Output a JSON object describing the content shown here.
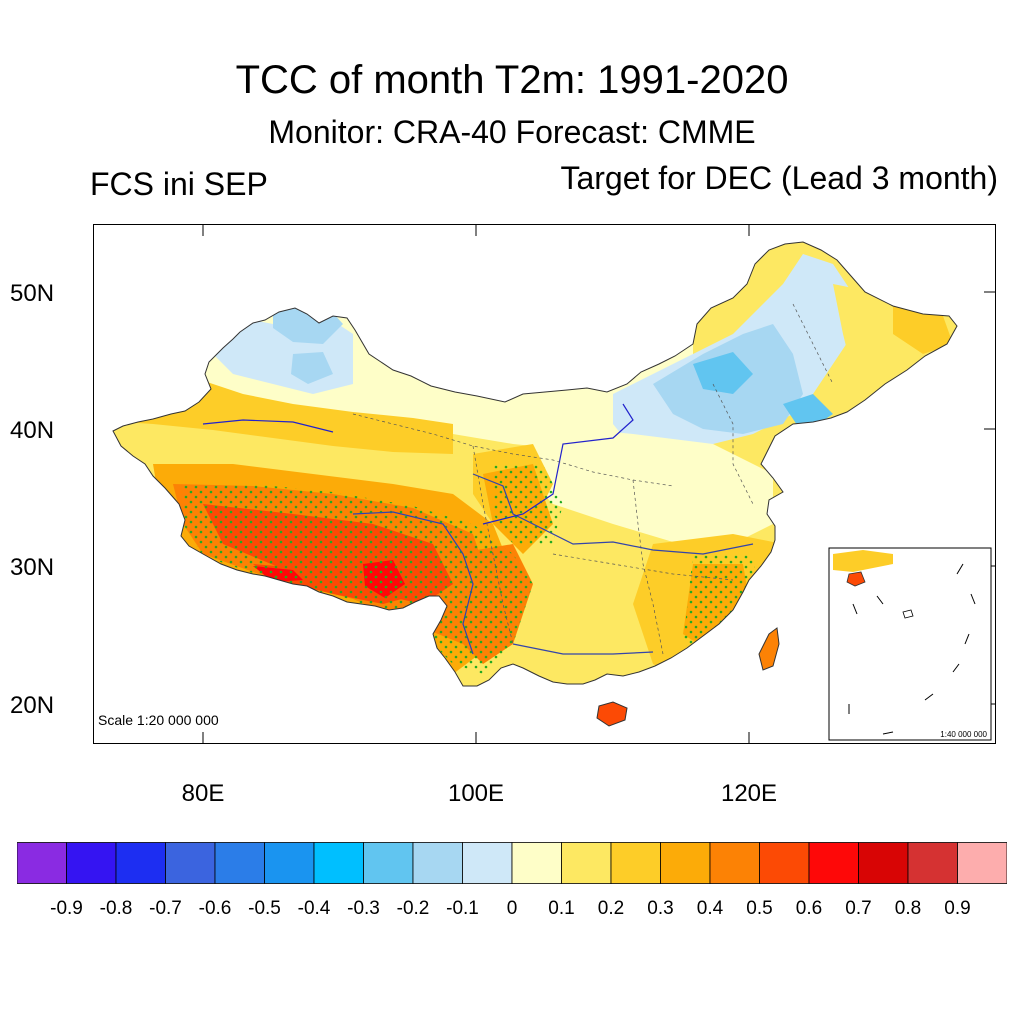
{
  "title": "TCC of month T2m: 1991-2020",
  "subtitle": "Monitor: CRA-40   Forecast: CMME",
  "left_label": "FCS ini SEP",
  "right_label": "Target for DEC (Lead 3 month)",
  "scale_main": "Scale 1:20 000 000",
  "scale_inset": "1:40 000 000",
  "lat_labels": [
    "50N",
    "40N",
    "30N",
    "20N"
  ],
  "lon_labels": [
    "80E",
    "100E",
    "120E"
  ],
  "colorbar": {
    "colors": [
      "#8a2be2",
      "#3514f2",
      "#1d2ef2",
      "#3b64df",
      "#2b7de8",
      "#1a94f0",
      "#00bfff",
      "#61c5f0",
      "#a7d7f2",
      "#cfe8f8",
      "#fefec8",
      "#fde862",
      "#fdcd28",
      "#fcab08",
      "#fc8205",
      "#fc4a05",
      "#fe0808",
      "#d80505",
      "#d53232",
      "#fdadad"
    ],
    "tick_labels": [
      "-0.9",
      "-0.8",
      "-0.7",
      "-0.6",
      "-0.5",
      "-0.4",
      "-0.3",
      "-0.2",
      "-0.1",
      "0",
      "0.1",
      "0.2",
      "0.3",
      "0.4",
      "0.5",
      "0.6",
      "0.7",
      "0.8",
      "0.9"
    ]
  },
  "colors": {
    "neg_strong": "#61c5f0",
    "neg_mid": "#a7d7f2",
    "neg_weak": "#cfe8f8",
    "zero": "#fefec8",
    "pos_01": "#fde862",
    "pos_02": "#fdcd28",
    "pos_03": "#fcab08",
    "pos_04": "#fc8205",
    "pos_05": "#fc4a05",
    "pos_06": "#fe0808",
    "stipple": "#22aa22"
  }
}
